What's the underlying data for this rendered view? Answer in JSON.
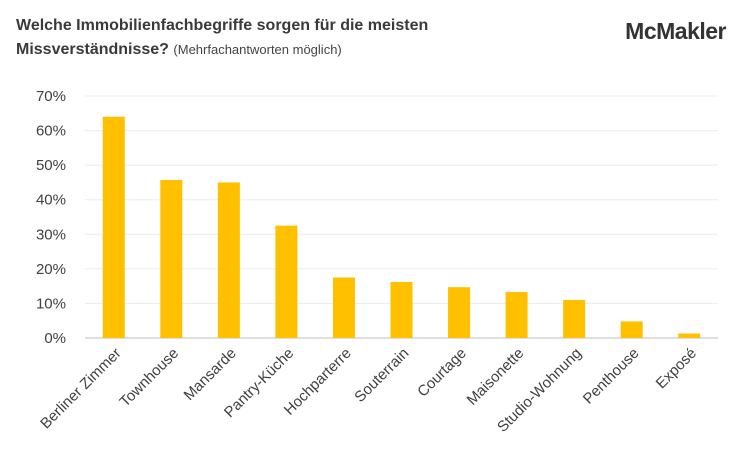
{
  "header": {
    "title_line1": "Welche Immobilienfachbegriffe sorgen für die meisten",
    "title_line2": "Missverständnisse?",
    "subtitle": "(Mehrfachantworten möglich)",
    "brand": "McMakler"
  },
  "colors": {
    "bar": "#FFC000",
    "grid": "#ECECEC",
    "axis": "#BFBFBF",
    "text": "#404040"
  },
  "chart_data": {
    "type": "bar",
    "categories": [
      "Berliner Zimmer",
      "Townhouse",
      "Mansarde",
      "Pantry-Küche",
      "Hochparterre",
      "Souterrain",
      "Courtage",
      "Maisonette",
      "Studio-Wohnung",
      "Penthouse",
      "Exposé"
    ],
    "values": [
      64,
      45.7,
      45,
      32.5,
      17.5,
      16.2,
      14.7,
      13.3,
      11,
      4.8,
      1.3
    ],
    "ylim": [
      0,
      70
    ],
    "yticks": [
      "0%",
      "10%",
      "20%",
      "30%",
      "40%",
      "50%",
      "60%",
      "70%"
    ],
    "ytick_values": [
      0,
      10,
      20,
      30,
      40,
      50,
      60,
      70
    ],
    "grid": true
  }
}
